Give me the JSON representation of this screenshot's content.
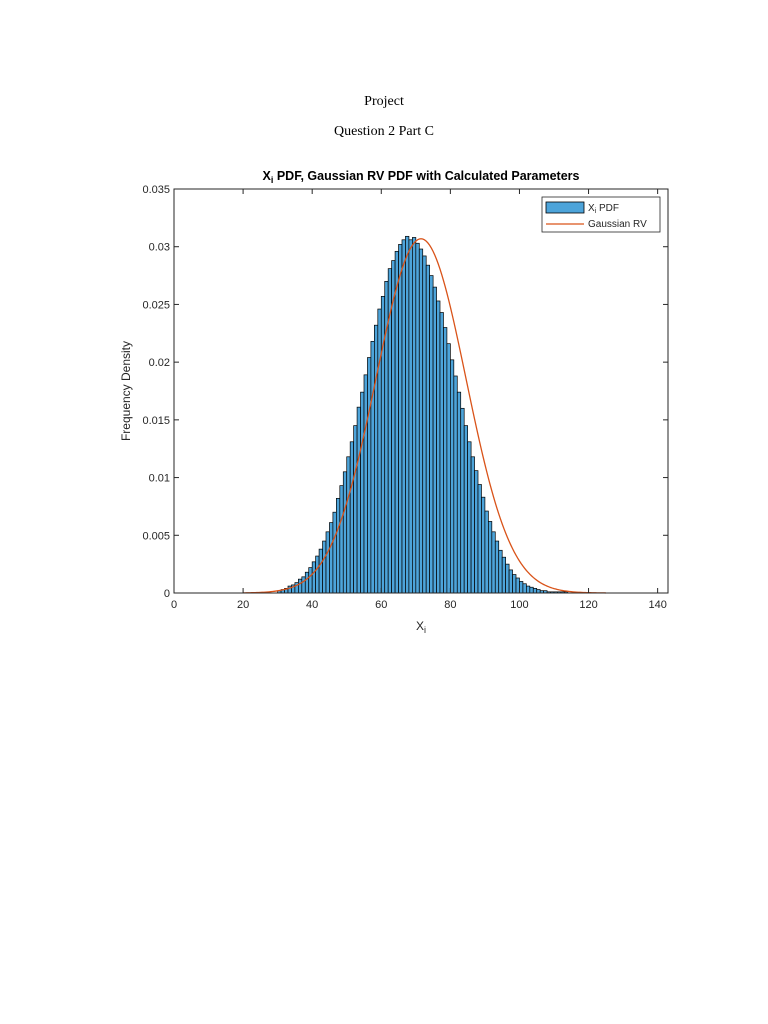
{
  "document": {
    "title": "Project",
    "subtitle": "Question 2 Part C"
  },
  "chart_data": {
    "type": "bar",
    "title_main": "X",
    "title_sub": "i",
    "title_rest": " PDF, Gaussian RV PDF with Calculated Parameters",
    "xlabel_main": "X",
    "xlabel_sub": "i",
    "ylabel": "Frequency Density",
    "xlim": [
      0,
      143
    ],
    "ylim": [
      0,
      0.035
    ],
    "x_ticks": [
      0,
      20,
      40,
      60,
      80,
      100,
      120,
      140
    ],
    "y_ticks": [
      0,
      0.005,
      0.01,
      0.015,
      0.02,
      0.025,
      0.03,
      0.035
    ],
    "y_tick_labels": [
      "0",
      "0.005",
      "0.01",
      "0.015",
      "0.02",
      "0.025",
      "0.03",
      "0.035"
    ],
    "grid": false,
    "legend_position": "top-right",
    "gaussian": {
      "mean": 71.5,
      "std": 13.0
    },
    "series": [
      {
        "name": "X",
        "name_sub": "i",
        "name_rest": " PDF",
        "kind": "histogram",
        "bin_width": 1,
        "bin_starts": [
          30,
          31,
          32,
          33,
          34,
          35,
          36,
          37,
          38,
          39,
          40,
          41,
          42,
          43,
          44,
          45,
          46,
          47,
          48,
          49,
          50,
          51,
          52,
          53,
          54,
          55,
          56,
          57,
          58,
          59,
          60,
          61,
          62,
          63,
          64,
          65,
          66,
          67,
          68,
          69,
          70,
          71,
          72,
          73,
          74,
          75,
          76,
          77,
          78,
          79,
          80,
          81,
          82,
          83,
          84,
          85,
          86,
          87,
          88,
          89,
          90,
          91,
          92,
          93,
          94,
          95,
          96,
          97,
          98,
          99,
          100,
          101,
          102,
          103,
          104,
          105,
          106,
          107,
          108,
          109,
          110,
          111,
          112,
          113
        ],
        "values": [
          0.0002,
          0.0003,
          0.0004,
          0.0006,
          0.0007,
          0.0009,
          0.0012,
          0.0014,
          0.0018,
          0.0022,
          0.0027,
          0.0032,
          0.0038,
          0.0045,
          0.0053,
          0.0061,
          0.007,
          0.0082,
          0.0093,
          0.0105,
          0.0118,
          0.0131,
          0.0145,
          0.0161,
          0.0174,
          0.0189,
          0.0204,
          0.0218,
          0.0232,
          0.0246,
          0.0257,
          0.027,
          0.0281,
          0.0288,
          0.0296,
          0.0302,
          0.0306,
          0.0309,
          0.0306,
          0.0308,
          0.0303,
          0.0298,
          0.0292,
          0.0284,
          0.0275,
          0.0265,
          0.0253,
          0.0243,
          0.023,
          0.0216,
          0.0202,
          0.0188,
          0.0174,
          0.016,
          0.0145,
          0.0131,
          0.0118,
          0.0106,
          0.0094,
          0.0083,
          0.0071,
          0.0062,
          0.0053,
          0.0045,
          0.0037,
          0.0031,
          0.0025,
          0.002,
          0.0016,
          0.0013,
          0.001,
          0.0008,
          0.0006,
          0.0005,
          0.0004,
          0.0003,
          0.0002,
          0.0002,
          0.0001,
          0.0001,
          0.0001,
          0.0001,
          0.0001,
          0.0001
        ],
        "color": "#4DA4DA"
      },
      {
        "name": "Gaussian RV",
        "kind": "line",
        "color": "#D95319"
      }
    ]
  }
}
